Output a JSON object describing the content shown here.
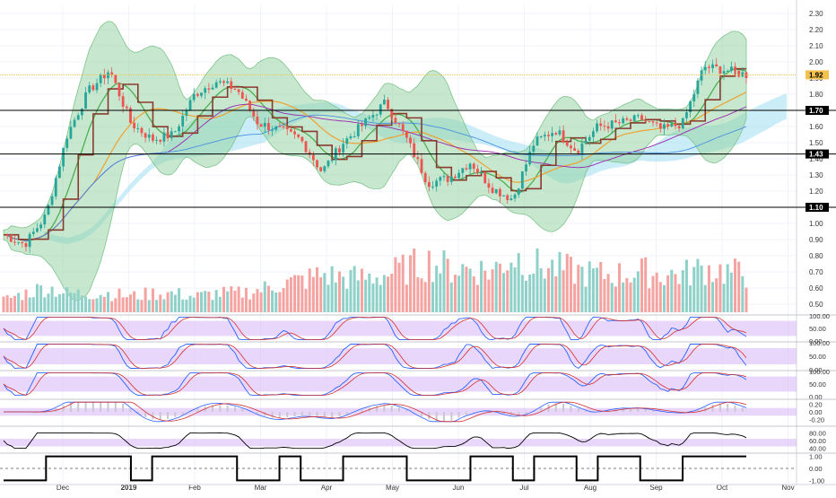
{
  "chart_data": {
    "type": "line",
    "title": "",
    "colors": {
      "candle_up": "#26a69a",
      "candle_down": "#ef5350",
      "bollinger_fill": "#8fd19e",
      "cloud_fill": "#8ad8ee",
      "trend_line": "#8b3a2e",
      "osc_band": "#d7b4f7",
      "price_line": "#f2c14e",
      "hline": "#000000",
      "grid": "#f0f3fa",
      "ma_green": "#4caf50",
      "ma_orange": "#f0a030",
      "ma_purple": "#9c27b0",
      "ma_blue": "#4a90e2"
    },
    "time_axis": [
      "Dec",
      "2019",
      "Feb",
      "Mar",
      "Apr",
      "May",
      "Jun",
      "Jul",
      "Aug",
      "Sep",
      "Oct",
      "Nov"
    ],
    "price_axis": {
      "ticks": [
        "2.30",
        "2.20",
        "2.10",
        "2.00",
        "1.90",
        "1.80",
        "1.70",
        "1.60",
        "1.50",
        "1.40",
        "1.30",
        "1.20",
        "1.10",
        "1.00",
        "0.90",
        "0.80",
        "0.70",
        "0.60",
        "0.50"
      ],
      "range": [
        0.45,
        2.35
      ],
      "levels": [
        {
          "value": 1.7,
          "label": "1.70"
        },
        {
          "value": 1.43,
          "label": "1.43"
        },
        {
          "value": 1.1,
          "label": "1.10"
        }
      ],
      "last_price": {
        "value": 1.92,
        "label": "1.92"
      }
    },
    "price_series": {
      "name": "price",
      "x": [
        "Nov 20",
        "Nov 27",
        "Dec 1",
        "Dec 8",
        "Dec 15",
        "Dec 22",
        "Jan 1",
        "Jan 10",
        "Jan 20",
        "Feb 1",
        "Feb 10",
        "Feb 20",
        "Mar 1",
        "Mar 10",
        "Mar 20",
        "Apr 1",
        "Apr 10",
        "Apr 20",
        "May 1",
        "May 10",
        "May 20",
        "Jun 1",
        "Jun 10",
        "Jun 20",
        "Jul 1",
        "Jul 10",
        "Jul 20",
        "Aug 1",
        "Aug 10",
        "Aug 20",
        "Sep 1",
        "Sep 10",
        "Sep 20",
        "Sep 28",
        "Oct 3",
        "Oct 8"
      ],
      "values": [
        0.93,
        0.87,
        1.05,
        1.55,
        1.82,
        1.95,
        1.62,
        1.52,
        1.55,
        1.8,
        1.88,
        1.83,
        1.62,
        1.58,
        1.52,
        1.32,
        1.5,
        1.62,
        1.75,
        1.52,
        1.25,
        1.28,
        1.38,
        1.22,
        1.15,
        1.5,
        1.58,
        1.45,
        1.6,
        1.62,
        1.65,
        1.58,
        1.62,
        1.97,
        1.95,
        1.92
      ]
    },
    "volume_series": {
      "name": "volume",
      "values": [
        0.2,
        0.3,
        0.4,
        0.3,
        0.3,
        0.3,
        0.25,
        0.3,
        0.3,
        0.25,
        0.3,
        0.3,
        0.35,
        0.45,
        0.5,
        0.6,
        0.55,
        0.55,
        0.6,
        0.7,
        0.8,
        0.7,
        0.7,
        0.65,
        0.9,
        0.75,
        0.7,
        0.65,
        0.6,
        0.6,
        0.65,
        0.6,
        0.6,
        0.7,
        0.65,
        0.6
      ],
      "range": [
        0,
        1
      ]
    },
    "oscillators": [
      {
        "ticks": [
          "100.00",
          "50.00",
          "0.00"
        ],
        "range": [
          0,
          100
        ]
      },
      {
        "ticks": [
          "100.00",
          "50.00",
          "0.00"
        ],
        "range": [
          0,
          100
        ]
      },
      {
        "ticks": [
          "100.00",
          "50.00",
          "0.00"
        ],
        "range": [
          0,
          100
        ]
      },
      {
        "ticks": [
          "0.20",
          "0.00",
          "-0.20"
        ],
        "range": [
          -0.3,
          0.3
        ]
      },
      {
        "ticks": [
          "80.00",
          "60.00",
          "40.00"
        ],
        "range": [
          30,
          95
        ]
      },
      {
        "ticks": [
          "1.00",
          "0.00",
          "-1.00"
        ],
        "range": [
          -1.2,
          1.2
        ]
      }
    ],
    "regime_series": {
      "name": "regime",
      "values": [
        -1,
        -1,
        1,
        1,
        1,
        1,
        -1,
        1,
        1,
        1,
        1,
        -1,
        -1,
        1,
        -1,
        -1,
        1,
        1,
        1,
        -1,
        -1,
        -1,
        1,
        1,
        -1,
        1,
        1,
        -1,
        1,
        1,
        -1,
        -1,
        1,
        1,
        1,
        1
      ]
    }
  }
}
